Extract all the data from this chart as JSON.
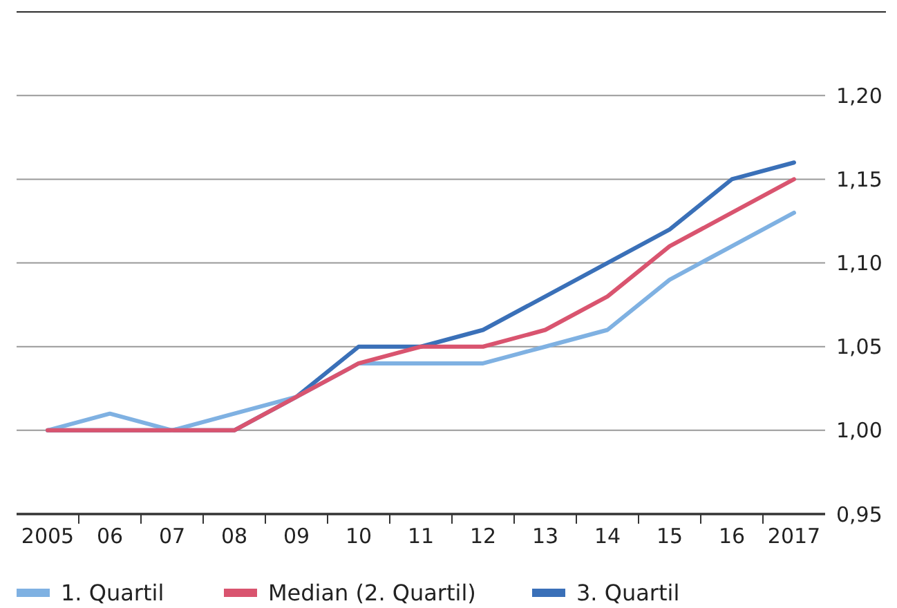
{
  "chart_data": {
    "type": "line",
    "categories": [
      "2005",
      "06",
      "07",
      "08",
      "09",
      "10",
      "11",
      "12",
      "13",
      "14",
      "15",
      "16",
      "2017"
    ],
    "series": [
      {
        "name": "1. Quartil",
        "color": "#7fb1e2",
        "values": [
          1.0,
          1.01,
          1.0,
          1.01,
          1.02,
          1.04,
          1.04,
          1.04,
          1.05,
          1.06,
          1.09,
          1.11,
          1.13
        ]
      },
      {
        "name": "Median (2. Quartil)",
        "color": "#d9546f",
        "values": [
          1.0,
          1.0,
          1.0,
          1.0,
          1.02,
          1.04,
          1.05,
          1.05,
          1.06,
          1.08,
          1.11,
          1.13,
          1.15
        ]
      },
      {
        "name": "3. Quartil",
        "color": "#3a70b8",
        "values": [
          1.0,
          1.0,
          1.0,
          1.0,
          1.02,
          1.05,
          1.05,
          1.06,
          1.08,
          1.1,
          1.12,
          1.15,
          1.16
        ]
      }
    ],
    "ylim": [
      0.95,
      1.25
    ],
    "yticks": [
      {
        "value": 0.95,
        "label": "0,95"
      },
      {
        "value": 1.0,
        "label": "1,00"
      },
      {
        "value": 1.05,
        "label": "1,05"
      },
      {
        "value": 1.1,
        "label": "1,10"
      },
      {
        "value": 1.15,
        "label": "1,15"
      },
      {
        "value": 1.2,
        "label": "1,20"
      },
      {
        "value": 1.25,
        "label": null
      }
    ],
    "grid": "y",
    "legend": "bottom",
    "marker": "none",
    "line_style": "solid"
  }
}
